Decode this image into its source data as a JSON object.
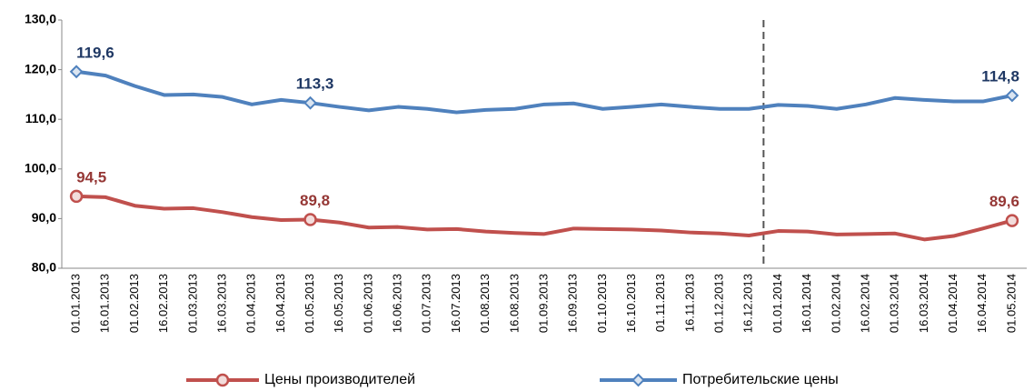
{
  "chart_data": {
    "type": "line",
    "categories": [
      "01.01.2013",
      "16.01.2013",
      "01.02.2013",
      "16.02.2013",
      "01.03.2013",
      "16.03.2013",
      "01.04.2013",
      "16.04.2013",
      "01.05.2013",
      "16.05.2013",
      "01.06.2013",
      "16.06.2013",
      "01.07.2013",
      "16.07.2013",
      "01.08.2013",
      "16.08.2013",
      "01.09.2013",
      "16.09.2013",
      "01.10.2013",
      "16.10.2013",
      "01.11.2013",
      "16.11.2013",
      "01.12.2013",
      "16.12.2013",
      "01.01.2014",
      "16.01.2014",
      "01.02.2014",
      "16.02.2014",
      "01.03.2014",
      "16.03.2014",
      "01.04.2014",
      "16.04.2014",
      "01.05.2014"
    ],
    "series": [
      {
        "name": "Цены производителей",
        "color": "#c0504d",
        "label_color": "#953735",
        "marker": "circle",
        "values": [
          94.5,
          94.3,
          92.6,
          92.0,
          92.1,
          91.3,
          90.3,
          89.7,
          89.8,
          89.2,
          88.2,
          88.3,
          87.8,
          87.9,
          87.4,
          87.1,
          86.9,
          88.0,
          87.9,
          87.8,
          87.6,
          87.2,
          87.0,
          86.6,
          87.5,
          87.4,
          86.8,
          86.9,
          87.0,
          85.8,
          86.5,
          88.0,
          89.6
        ],
        "value_labels": [
          "94,5",
          null,
          null,
          null,
          null,
          null,
          null,
          null,
          "89,8",
          null,
          null,
          null,
          null,
          null,
          null,
          null,
          null,
          null,
          null,
          null,
          null,
          null,
          null,
          null,
          null,
          null,
          null,
          null,
          null,
          null,
          null,
          null,
          "89,6"
        ]
      },
      {
        "name": "Потребительские цены",
        "color": "#4f81bd",
        "label_color": "#1f3864",
        "marker": "diamond",
        "values": [
          119.6,
          118.8,
          116.7,
          114.9,
          115.0,
          114.5,
          113.0,
          113.9,
          113.3,
          112.5,
          111.8,
          112.5,
          112.1,
          111.4,
          111.9,
          112.1,
          113.0,
          113.2,
          112.1,
          112.5,
          113.0,
          112.5,
          112.1,
          112.1,
          112.9,
          112.7,
          112.1,
          113.0,
          114.3,
          113.9,
          113.6,
          113.6,
          114.8
        ],
        "value_labels": [
          "119,6",
          null,
          null,
          null,
          null,
          null,
          null,
          null,
          "113,3",
          null,
          null,
          null,
          null,
          null,
          null,
          null,
          null,
          null,
          null,
          null,
          null,
          null,
          null,
          null,
          null,
          null,
          null,
          null,
          null,
          null,
          null,
          null,
          "114,8"
        ]
      }
    ],
    "ylim": [
      80,
      130
    ],
    "yticks": [
      {
        "value": 80,
        "label": "80,0"
      },
      {
        "value": 90,
        "label": "90,0"
      },
      {
        "value": 100,
        "label": "100,0"
      },
      {
        "value": 110,
        "label": "110,0"
      },
      {
        "value": 120,
        "label": "120,0"
      },
      {
        "value": 130,
        "label": "130,0"
      }
    ],
    "grid": false
  }
}
